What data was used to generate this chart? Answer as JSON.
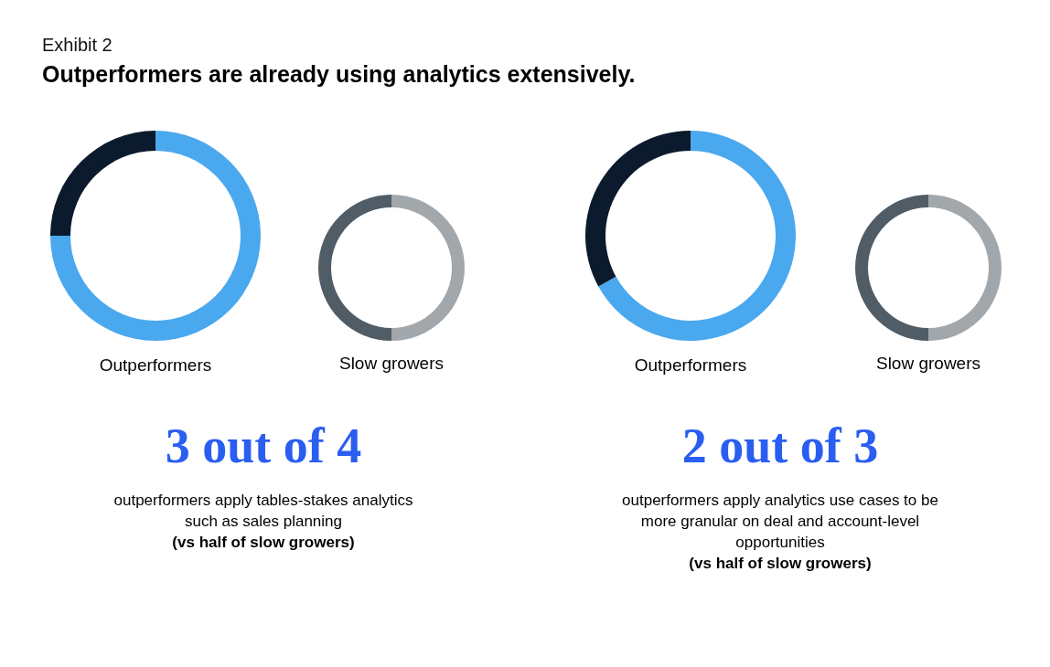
{
  "chart_data": [
    {
      "type": "other",
      "subtitle": "Exhibit 2",
      "title": "Outperformers are already using analytics extensively."
    },
    {
      "type": "donut",
      "title": "Outperformers",
      "categories": [
        null,
        null
      ],
      "values": [
        75,
        25
      ],
      "colors": [
        "#4aa8ee",
        "#0b1a2c"
      ]
    },
    {
      "type": "donut",
      "title": "Slow growers",
      "categories": [
        null,
        null
      ],
      "values": [
        50,
        50
      ],
      "colors": [
        "#a2a7ab",
        "#505c66"
      ]
    },
    {
      "type": "other",
      "annotations": [
        "3 out of 4",
        "outperformers apply tables-stakes analytics such as sales planning",
        "(vs half of slow growers)"
      ]
    },
    {
      "type": "donut",
      "title": "Outperformers",
      "categories": [
        null,
        null
      ],
      "values": [
        67,
        33
      ],
      "colors": [
        "#4aa8ee",
        "#0b1a2c"
      ]
    },
    {
      "type": "donut",
      "title": "Slow growers",
      "categories": [
        null,
        null
      ],
      "values": [
        50,
        50
      ],
      "colors": [
        "#a2a7ab",
        "#505c66"
      ]
    },
    {
      "type": "other",
      "annotations": [
        "2 out of 3",
        "outperformers apply analytics use cases to be more granular on deal and account-level opportunities",
        "(vs half of slow growers)"
      ]
    }
  ]
}
